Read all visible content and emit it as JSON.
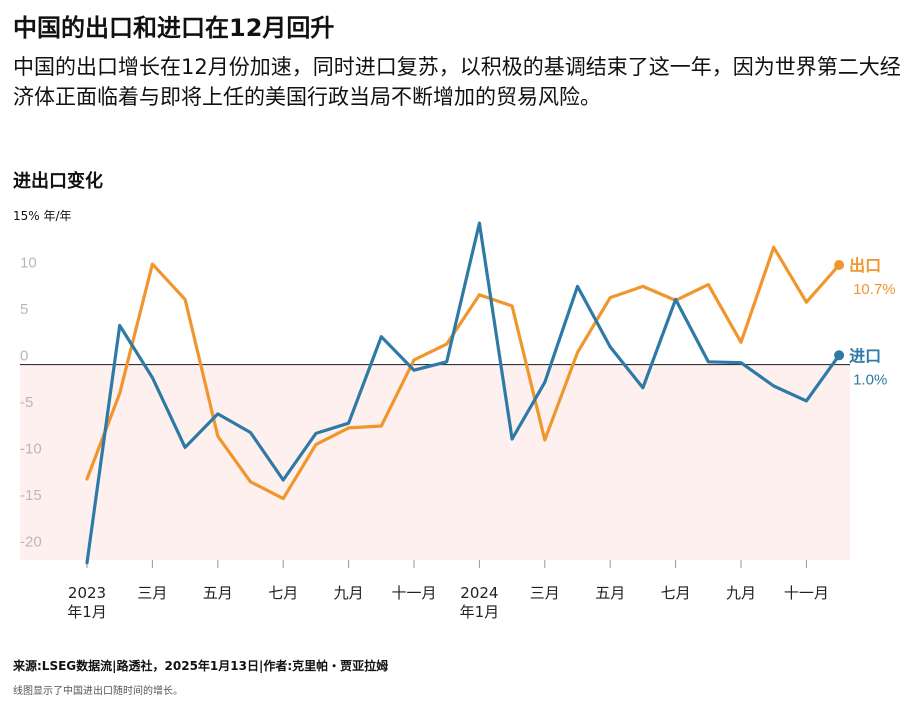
{
  "header": {
    "title": "中国的出口和进口在12月回升",
    "subtitle": "中国的出口增长在12月份加速，同时进口复苏，以积极的基调结束了这一年，因为世界第二大经济体正面临着与即将上任的美国行政当局不断增加的贸易风险。"
  },
  "chart_heading": "进出口变化",
  "unit_label": "15% 年/年",
  "footer": {
    "source": "来源:LSEG数据流|路透社，2025年1月13日|作者:克里帕・贾亚拉姆",
    "note": "线图显示了中国进出口随时间的增长。"
  },
  "chart_data": {
    "type": "line",
    "title": "进出口变化",
    "ylabel": "15% 年/年",
    "ylim": [
      -21,
      15
    ],
    "yticks": [
      10,
      5,
      0,
      -5,
      -10,
      -15,
      -20
    ],
    "negative_shading": true,
    "grid": false,
    "x_labels": [
      {
        "i": 0,
        "lines": [
          "2023",
          "年1月"
        ]
      },
      {
        "i": 2,
        "lines": [
          "三月"
        ]
      },
      {
        "i": 4,
        "lines": [
          "五月"
        ]
      },
      {
        "i": 6,
        "lines": [
          "七月"
        ]
      },
      {
        "i": 8,
        "lines": [
          "九月"
        ]
      },
      {
        "i": 10,
        "lines": [
          "十一月"
        ]
      },
      {
        "i": 12,
        "lines": [
          "2024",
          "年1月"
        ]
      },
      {
        "i": 14,
        "lines": [
          "三月"
        ]
      },
      {
        "i": 16,
        "lines": [
          "五月"
        ]
      },
      {
        "i": 18,
        "lines": [
          "七月"
        ]
      },
      {
        "i": 20,
        "lines": [
          "九月"
        ]
      },
      {
        "i": 22,
        "lines": [
          "十一月"
        ]
      }
    ],
    "series": [
      {
        "name": "出口",
        "color": "#f0962d",
        "end_label": "10.7%",
        "values": [
          -12.3,
          -3.1,
          10.8,
          7.0,
          -7.7,
          -12.6,
          -14.4,
          -8.6,
          -6.8,
          -6.6,
          0.5,
          2.2,
          7.5,
          6.3,
          -8.1,
          1.3,
          7.2,
          8.4,
          6.9,
          8.6,
          2.4,
          12.6,
          6.7,
          10.7
        ]
      },
      {
        "name": "进口",
        "color": "#2e7aa6",
        "end_label": "1.0%",
        "values": [
          -21.3,
          4.2,
          -1.4,
          -8.9,
          -5.3,
          -7.3,
          -12.4,
          -7.4,
          -6.3,
          3.0,
          -0.6,
          0.3,
          15.2,
          -8.0,
          -1.9,
          8.4,
          1.9,
          -2.5,
          7.0,
          0.3,
          0.2,
          -2.3,
          -3.9,
          1.0
        ]
      }
    ]
  }
}
